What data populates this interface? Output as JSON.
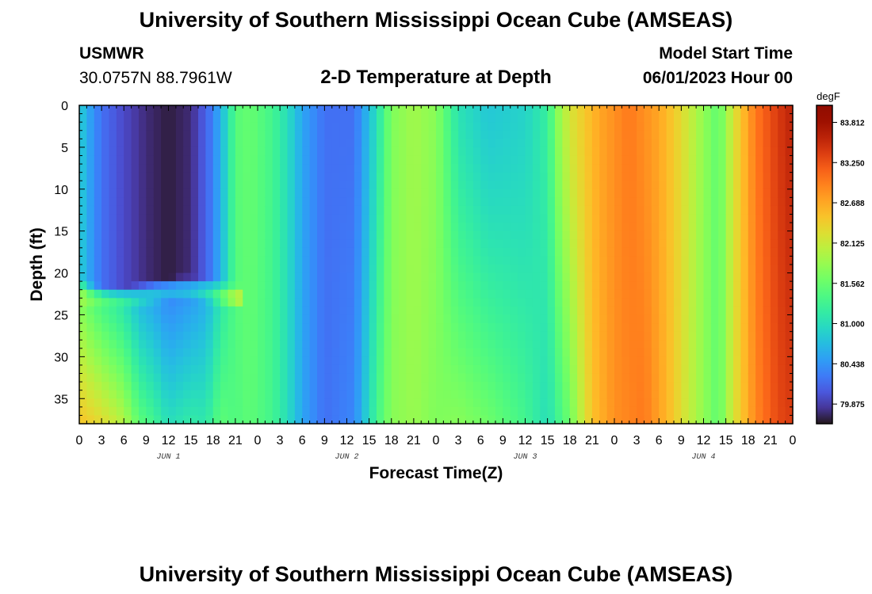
{
  "header": {
    "title": "University of Southern Mississippi Ocean Cube (AMSEAS)",
    "station": "USMWR",
    "coordinates": "30.0757N  88.7961W",
    "model_start_label": "Model Start Time",
    "model_start_value": "06/01/2023 Hour 00",
    "footer_title": "University of Southern Mississippi Ocean Cube (AMSEAS)"
  },
  "chart_data": {
    "type": "heatmap",
    "title": "2-D Temperature at Depth",
    "xlabel": "Forecast Time(Z)",
    "ylabel": "Depth (ft)",
    "x_range_hours": [
      0,
      96
    ],
    "y_range": [
      0,
      38
    ],
    "y_inverted": true,
    "x_tick_labels": [
      "0",
      "3",
      "6",
      "9",
      "12",
      "15",
      "18",
      "21",
      "0",
      "3",
      "6",
      "9",
      "12",
      "15",
      "18",
      "21",
      "0",
      "3",
      "6",
      "9",
      "12",
      "15",
      "18",
      "21",
      "0",
      "3",
      "6",
      "9",
      "12",
      "15",
      "18",
      "21",
      "0"
    ],
    "y_ticks": [
      0,
      5,
      10,
      15,
      20,
      25,
      30,
      35
    ],
    "day_labels": [
      "JUN 1",
      "JUN 2",
      "JUN 3",
      "JUN 4"
    ],
    "colorbar": {
      "unit": "degF",
      "ticks": [
        "83.812",
        "83.250",
        "82.688",
        "82.125",
        "81.562",
        "81.000",
        "80.438",
        "79.875"
      ],
      "min": 79.6,
      "max": 84.05,
      "colormap": "turbo"
    },
    "grid": false,
    "surface_profile_degF": [
      [
        0,
        80.9
      ],
      [
        1,
        80.6
      ],
      [
        3,
        80.2
      ],
      [
        6,
        79.95
      ],
      [
        9,
        79.75
      ],
      [
        12,
        79.65
      ],
      [
        15,
        79.75
      ],
      [
        18,
        80.3
      ],
      [
        20,
        81.0
      ],
      [
        21,
        81.45
      ],
      [
        23,
        81.55
      ],
      [
        26,
        81.3
      ],
      [
        28,
        81.0
      ],
      [
        30,
        80.55
      ],
      [
        33,
        80.2
      ],
      [
        37,
        80.2
      ],
      [
        40,
        81.0
      ],
      [
        42,
        81.7
      ],
      [
        45,
        81.9
      ],
      [
        48,
        81.75
      ],
      [
        51,
        81.05
      ],
      [
        55,
        80.8
      ],
      [
        60,
        80.9
      ],
      [
        63,
        81.2
      ],
      [
        64.5,
        81.8
      ],
      [
        66,
        82.2
      ],
      [
        70,
        82.7
      ],
      [
        74,
        83.0
      ],
      [
        78,
        82.7
      ],
      [
        81,
        82.3
      ],
      [
        84,
        81.8
      ],
      [
        86,
        81.5
      ],
      [
        88,
        82.2
      ],
      [
        91,
        83.0
      ],
      [
        94,
        83.4
      ],
      [
        96,
        83.6
      ]
    ],
    "bottom_profile_degF": [
      [
        0,
        82.5
      ],
      [
        3,
        82.3
      ],
      [
        6,
        82.0
      ],
      [
        8,
        81.5
      ],
      [
        10,
        81.3
      ],
      [
        12,
        81.0
      ],
      [
        15,
        81.15
      ],
      [
        17,
        81.1
      ],
      [
        19,
        81.5
      ],
      [
        21,
        81.4
      ],
      [
        23,
        81.5
      ],
      [
        26,
        81.3
      ],
      [
        28,
        81.0
      ],
      [
        30,
        80.55
      ],
      [
        33,
        80.2
      ],
      [
        37,
        80.35
      ],
      [
        40,
        81.3
      ],
      [
        42,
        81.75
      ],
      [
        45,
        81.85
      ],
      [
        48,
        81.7
      ],
      [
        51,
        81.75
      ],
      [
        55,
        81.6
      ],
      [
        60,
        81.3
      ],
      [
        63,
        81.0
      ],
      [
        66,
        81.6
      ],
      [
        69,
        82.5
      ],
      [
        72,
        82.85
      ],
      [
        76,
        83.0
      ],
      [
        79,
        82.6
      ],
      [
        82,
        82.1
      ],
      [
        84,
        81.8
      ],
      [
        86,
        81.5
      ],
      [
        88,
        82.2
      ],
      [
        91,
        82.9
      ],
      [
        94,
        83.3
      ],
      [
        96,
        83.4
      ]
    ],
    "cold_pool": {
      "hour_range": [
        0,
        20.5
      ],
      "depth_range_ft": [
        0,
        21
      ],
      "core_degF": 79.65,
      "note": "near-surface cold layer over warmer bottom water on JUN 1"
    }
  }
}
